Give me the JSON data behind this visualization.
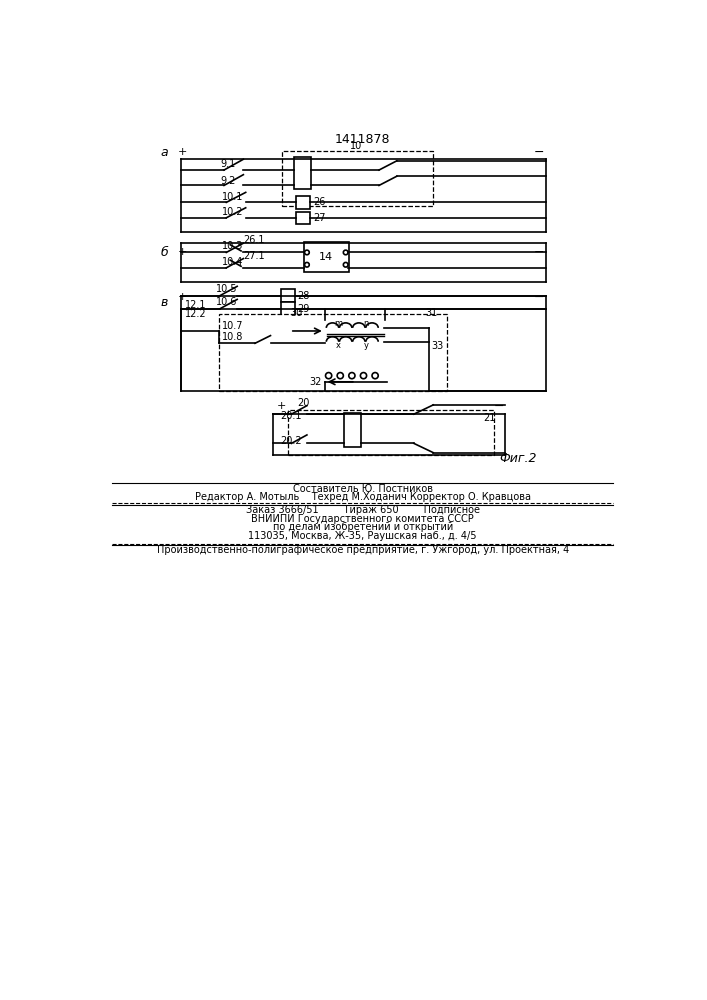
{
  "title": "1411878",
  "background_color": "#ffffff",
  "line_color": "#000000",
  "text_color": "#000000",
  "footer_line1": "Составитель Ю. Постников",
  "footer_line2": "Редактор А. Мотыль    Техред М.Ходанич Корректор О. Кравцова",
  "footer_line3": "Заказ 3666/51        Тираж 650        Подписное",
  "footer_line4": "ВНИИПИ Государственного комитета СССР",
  "footer_line5": "по делам изобретений и открытий",
  "footer_line6": "113035, Москва, Ж-35, Раушская наб., д. 4/5",
  "footer_line7": "Производственно-полиграфическое предприятие, г. Ужгород, ул. Проектная, 4"
}
